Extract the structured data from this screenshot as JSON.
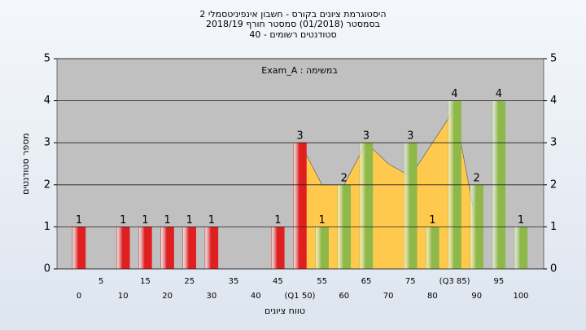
{
  "chart_data": {
    "type": "bar",
    "title_lines": [
      "היסטוגרמת ציונים בקורס - חשבון אינפיניטסמלי 2",
      "בסמסטר (01/2018)  סמסטר חורף 2018/19",
      "סטודנטים רשומים - 40"
    ],
    "annotation": "במשימה : Exam_A",
    "y_label": "מספר סטודנטים",
    "x_label": "טווח ציונים",
    "categories": [
      "0",
      "5",
      "10",
      "15",
      "20",
      "25",
      "30",
      "35",
      "40",
      "45",
      "(Q1 50)",
      "55",
      "60",
      "65",
      "70",
      "75",
      "80",
      "(Q3 85)",
      "90",
      "95",
      "100"
    ],
    "values": [
      1,
      0,
      1,
      1,
      1,
      1,
      1,
      0,
      0,
      1,
      3,
      1,
      2,
      3,
      0,
      3,
      1,
      4,
      2,
      4,
      1
    ],
    "colors": [
      "#e02020",
      "#e02020",
      "#e02020",
      "#e02020",
      "#e02020",
      "#e02020",
      "#e02020",
      "#e02020",
      "#e02020",
      "#e02020",
      "#e02020",
      "#8fb84a",
      "#8fb84a",
      "#8fb84a",
      "#8fb84a",
      "#8fb84a",
      "#8fb84a",
      "#8fb84a",
      "#8fb84a",
      "#8fb84a",
      "#8fb84a"
    ],
    "area_values": [
      null,
      null,
      null,
      null,
      null,
      null,
      null,
      null,
      null,
      null,
      3,
      2,
      2,
      3,
      2.5,
      2.2,
      3,
      3.8,
      1,
      null,
      null
    ],
    "area_color": "#ffc94d",
    "ylim": [
      0,
      5
    ],
    "yticks": [
      0,
      1,
      2,
      3,
      4,
      5
    ],
    "grid": true
  }
}
